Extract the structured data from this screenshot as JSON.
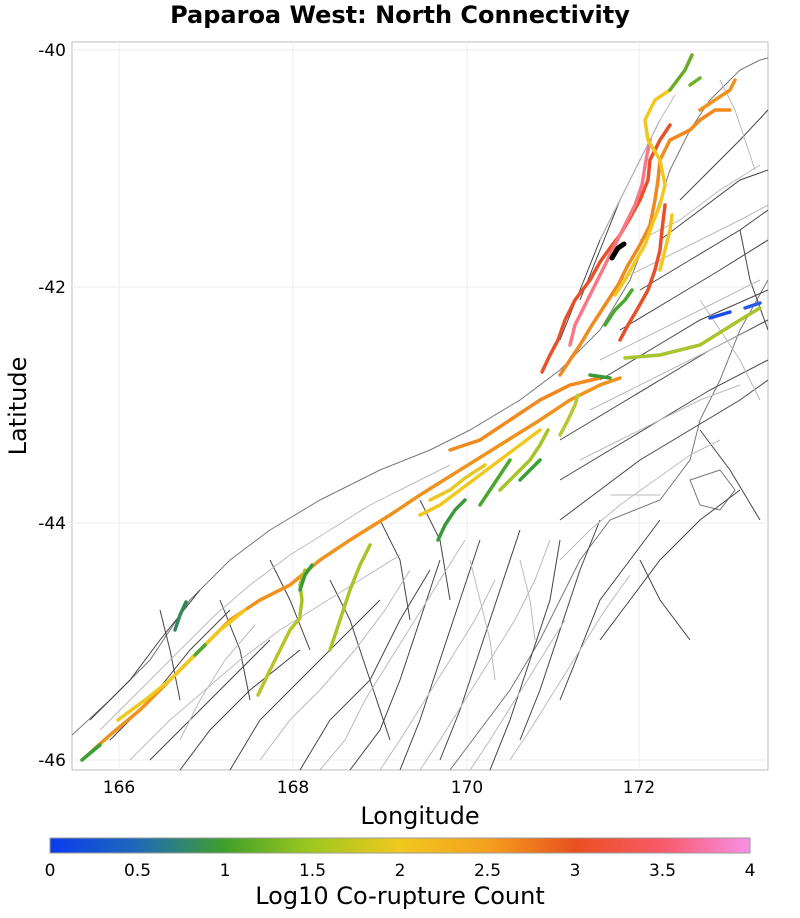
{
  "title": "Paparoa West: North Connectivity",
  "x_axis": {
    "label": "Longitude",
    "ticks": [
      "166",
      "168",
      "170",
      "172"
    ],
    "range": [
      165.5,
      173.5
    ]
  },
  "y_axis": {
    "label": "Latitude",
    "ticks": [
      "-40",
      "-42",
      "-44",
      "-46"
    ],
    "range": [
      -46.1,
      -39.95
    ]
  },
  "colorbar": {
    "label": "Log10 Co-rupture Count",
    "ticks": [
      "0",
      "0.5",
      "1",
      "1.5",
      "2",
      "2.5",
      "3",
      "3.5",
      "4"
    ],
    "range": [
      0,
      4
    ],
    "colors": [
      "#0a3cf0",
      "#2e8a4a",
      "#5aa81e",
      "#d4c81e",
      "#f5c21e",
      "#f08a1e",
      "#e8502a",
      "#f85a78",
      "#f890e8"
    ]
  },
  "highlight": {
    "name": "Paparoa West",
    "color": "#000000"
  }
}
